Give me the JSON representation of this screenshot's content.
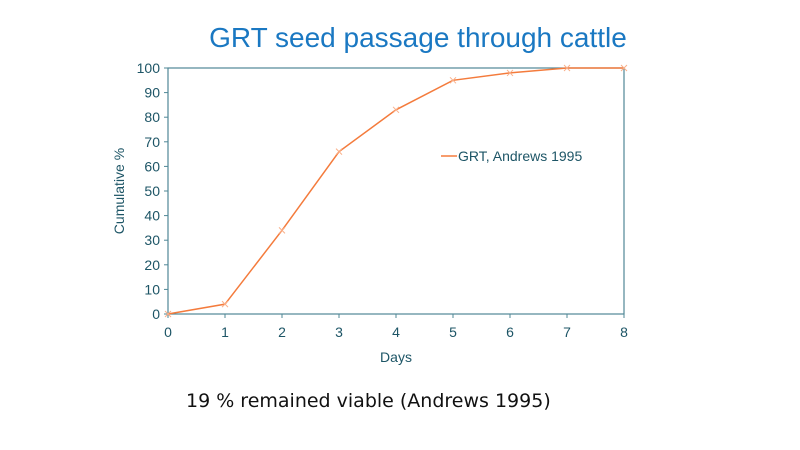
{
  "chart_data": {
    "type": "line",
    "title": "GRT seed passage through cattle",
    "xlabel": "Days",
    "ylabel": "Cumulative %",
    "x": [
      0,
      1,
      2,
      3,
      4,
      5,
      6,
      7,
      8
    ],
    "series": [
      {
        "name": "GRT, Andrews 1995",
        "values": [
          0,
          4,
          34,
          66,
          83,
          95,
          98,
          100,
          100
        ],
        "color": "#f47b3c"
      }
    ],
    "xlim": [
      0,
      8
    ],
    "ylim": [
      0,
      100
    ],
    "xticks": [
      "0",
      "1",
      "2",
      "3",
      "4",
      "5",
      "6",
      "7",
      "8"
    ],
    "yticks": [
      "0",
      "10",
      "20",
      "30",
      "40",
      "50",
      "60",
      "70",
      "80",
      "90",
      "100"
    ],
    "grid": false,
    "legend": "right"
  },
  "note": "19 % remained viable (Andrews 1995)"
}
